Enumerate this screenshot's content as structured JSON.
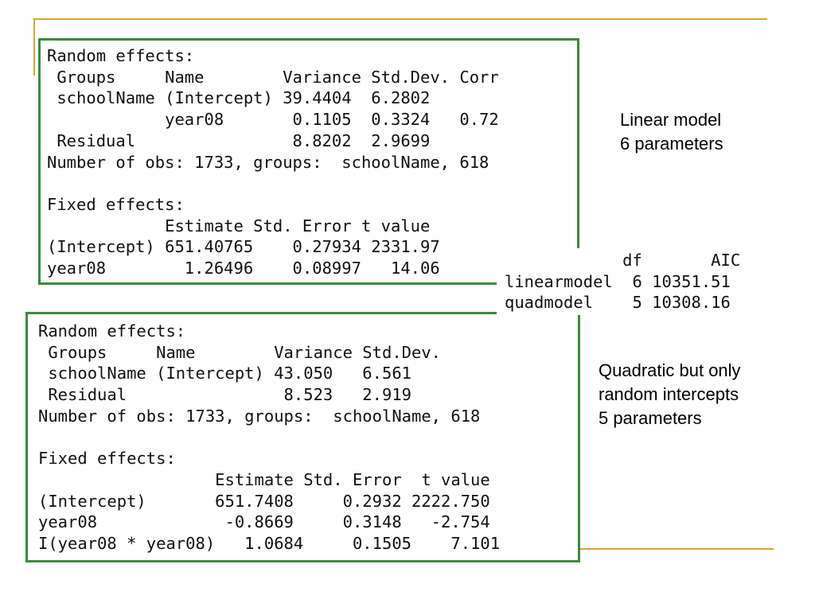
{
  "theme": {
    "accent_color": "#d4a72c",
    "box_border_color": "#3c8a3c"
  },
  "linear_output": {
    "lines": [
      "Random effects:",
      " Groups     Name        Variance Std.Dev. Corr",
      " schoolName (Intercept) 39.4404  6.2802",
      "            year08       0.1105  0.3324   0.72",
      " Residual                8.8202  2.9699",
      "Number of obs: 1733, groups:  schoolName, 618",
      "",
      "Fixed effects:",
      "            Estimate Std. Error t value",
      "(Intercept) 651.40765    0.27934 2331.97",
      "year08        1.26496    0.08997   14.06"
    ]
  },
  "quad_output": {
    "lines": [
      "Random effects:",
      " Groups     Name        Variance Std.Dev.",
      " schoolName (Intercept) 43.050   6.561",
      " Residual                8.523   2.919",
      "Number of obs: 1733, groups:  schoolName, 618",
      "",
      "Fixed effects:",
      "                  Estimate Std. Error  t value",
      "(Intercept)       651.7408     0.2932 2222.750",
      "year08             -0.8669     0.3148   -2.754",
      "I(year08 * year08)   1.0684     0.1505    7.101"
    ]
  },
  "anova_table": {
    "lines": [
      "            df       AIC",
      "linearmodel  6 10351.51",
      "quadmodel    5 10308.16"
    ]
  },
  "captions": {
    "linear": [
      "Linear model",
      "6 parameters"
    ],
    "quad": [
      "Quadratic but only",
      "random intercepts",
      "5 parameters"
    ]
  }
}
